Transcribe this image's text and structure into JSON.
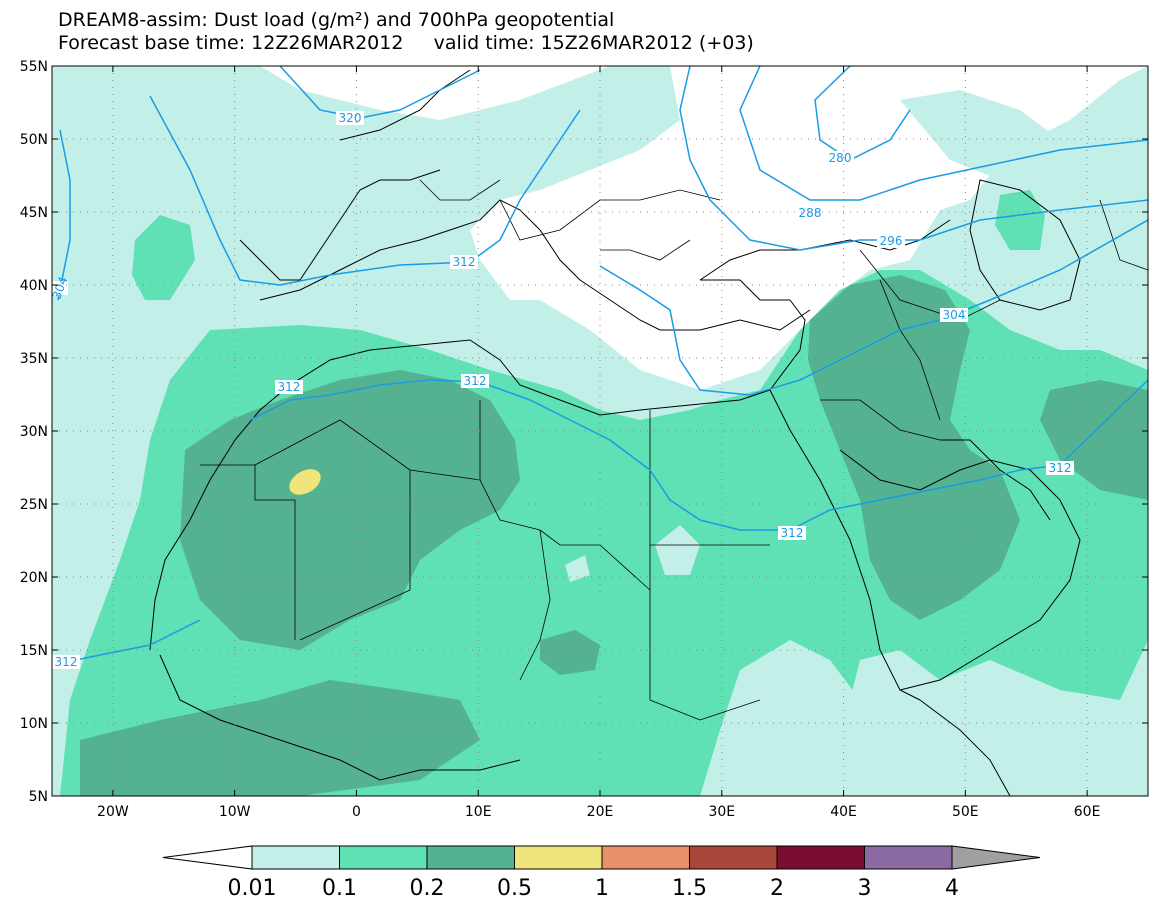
{
  "title": {
    "line1": "DREAM8-assim: Dust load (g/m²) and 700hPa geopotential",
    "base_time": "Forecast base time: 12Z26MAR2012",
    "valid_time": "valid time: 15Z26MAR2012 (+03)"
  },
  "map": {
    "lat_labels": [
      "55N",
      "50N",
      "45N",
      "40N",
      "35N",
      "30N",
      "25N",
      "20N",
      "15N",
      "10N",
      "5N"
    ],
    "lon_labels": [
      "20W",
      "10W",
      "0",
      "10E",
      "20E",
      "30E",
      "40E",
      "50E",
      "60E"
    ],
    "contour_labels": [
      "320",
      "280",
      "288",
      "296",
      "312",
      "304",
      "312",
      "312",
      "312",
      "312",
      "312",
      "304"
    ]
  },
  "colorbar": {
    "labels": [
      "0.01",
      "0.1",
      "0.2",
      "0.5",
      "1",
      "1.5",
      "2",
      "3",
      "4"
    ],
    "colors": [
      "#c2f0e8",
      "#5fe0b5",
      "#55b291",
      "#f0e57a",
      "#e8906a",
      "#a8473a",
      "#7a0e31",
      "#8a6aa0"
    ],
    "under_color": "#ffffff",
    "over_color": "#a0a0a0"
  },
  "colors": {
    "light": "#c2f0e8",
    "medium": "#5fe0b5",
    "dark": "#55b291",
    "yellow": "#f0e57a",
    "contour": "#1a9be6"
  }
}
